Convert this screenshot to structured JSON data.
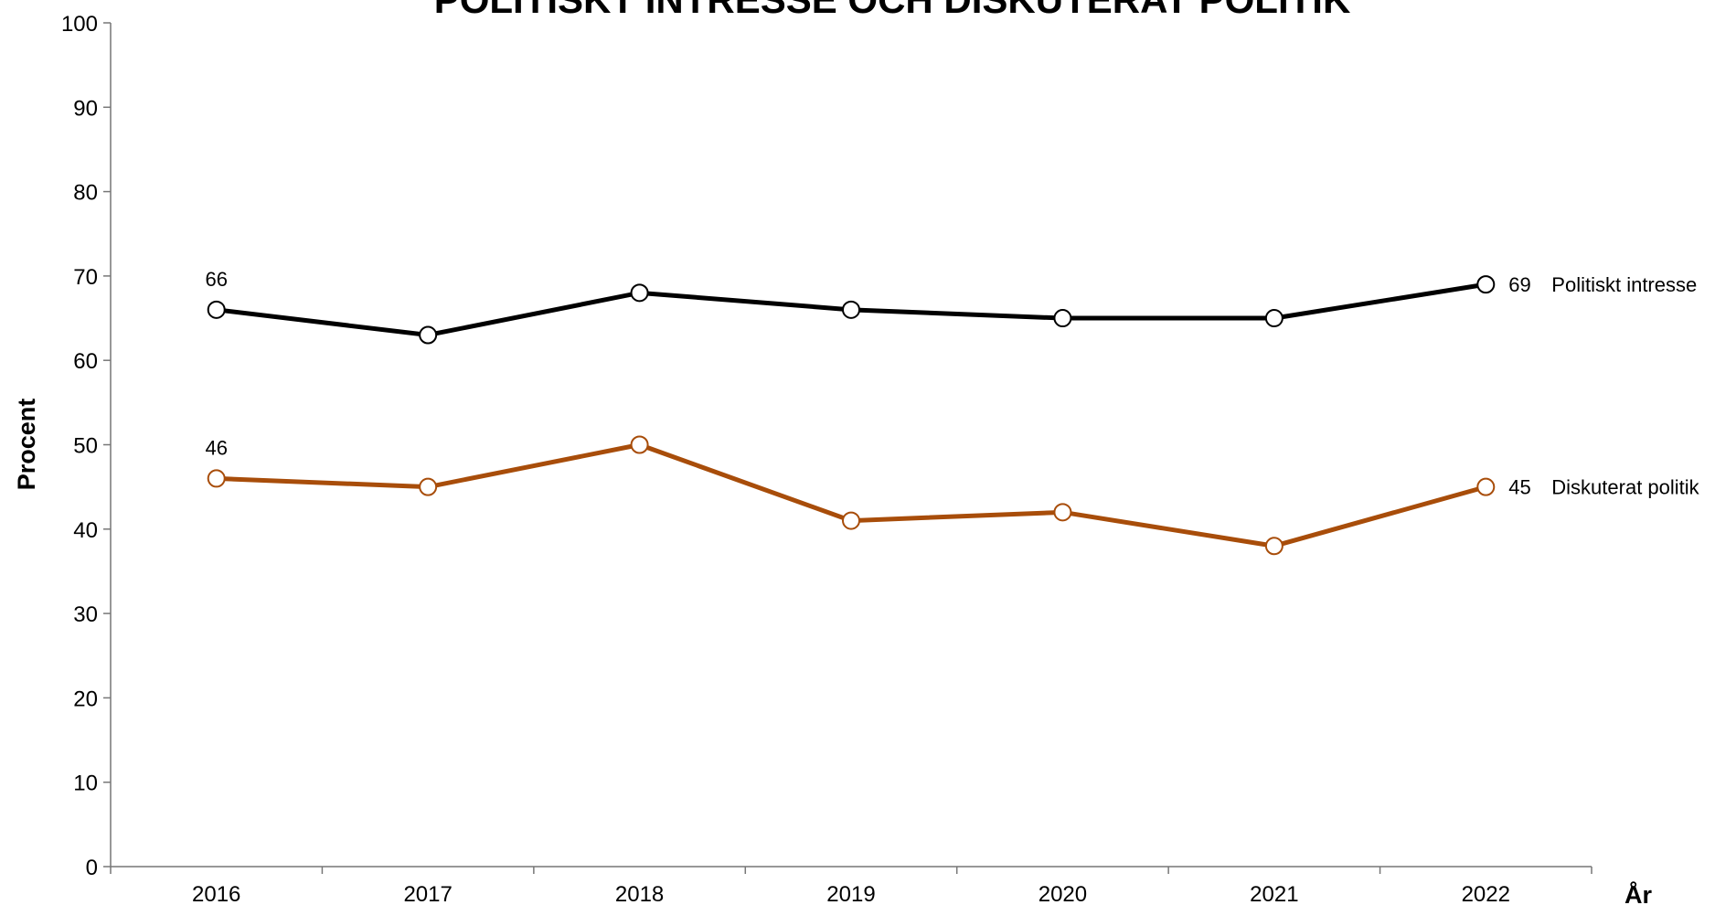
{
  "chart_data": {
    "type": "line",
    "title": "POLITISKT INTRESSE OCH DISKUTERAT POLITIK",
    "y_label": "Procent",
    "x_label": "År",
    "categories": [
      "2016",
      "2017",
      "2018",
      "2019",
      "2020",
      "2021",
      "2022"
    ],
    "series": [
      {
        "name": "Politiskt intresse",
        "color": "#000000",
        "values": [
          66,
          63,
          68,
          66,
          65,
          65,
          69
        ]
      },
      {
        "name": "Diskuterat politik",
        "color": "#a84d0a",
        "values": [
          46,
          45,
          50,
          41,
          42,
          38,
          45
        ]
      }
    ],
    "ylim": [
      0,
      100
    ],
    "yticks": [
      0,
      10,
      20,
      30,
      40,
      50,
      60,
      70,
      80,
      90,
      100
    ]
  }
}
